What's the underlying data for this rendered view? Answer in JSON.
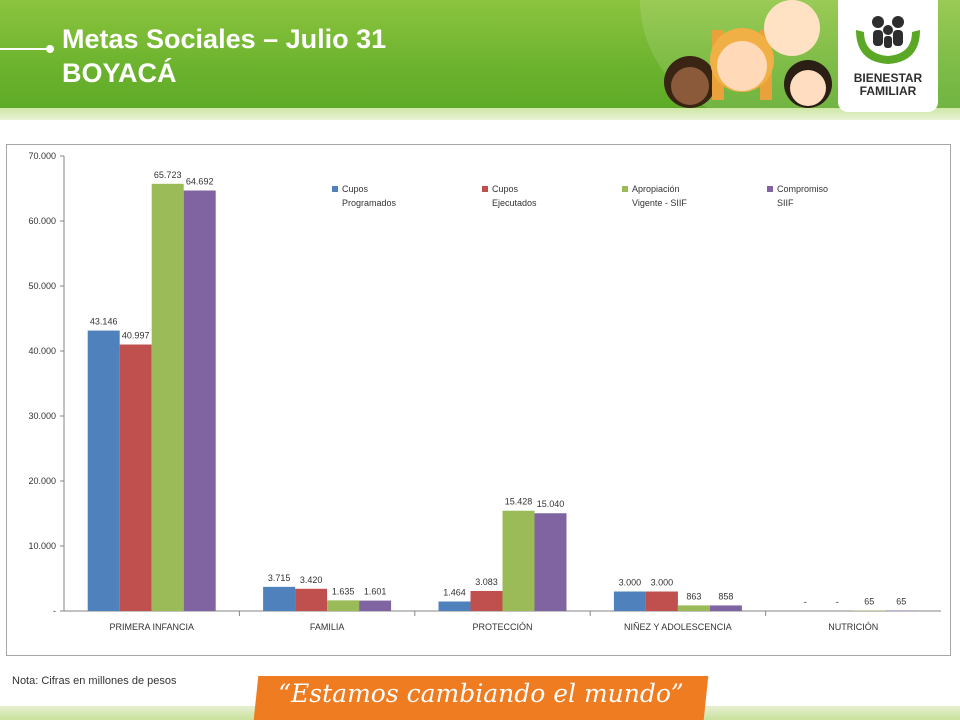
{
  "header": {
    "title_line1": "Metas Sociales – Julio 31",
    "title_line2": "BOYACÁ",
    "logo_line1": "BIENESTAR",
    "logo_line2": "FAMILIAR",
    "colors": {
      "green": "#6cb32e",
      "logo_green": "#5aa826"
    }
  },
  "footer": {
    "note": "Nota: Cifras en millones de pesos",
    "slogan": "“Estamos cambiando el mundo”",
    "slogan_color": "#f07c22"
  },
  "chart_data": {
    "type": "bar",
    "categories": [
      "PRIMERA INFANCIA",
      "FAMILIA",
      "PROTECCIÓN",
      "NIÑEZ Y ADOLESCENCIA",
      "NUTRICIÓN"
    ],
    "series": [
      {
        "name": "Cupos Programados",
        "legend_lines": [
          "Cupos",
          "Programados"
        ],
        "color": "#4f81bd",
        "values": [
          43146,
          3715,
          1464,
          3000,
          0
        ],
        "labels": [
          "43.146",
          "3.715",
          "1.464",
          "3.000",
          "-"
        ]
      },
      {
        "name": "Cupos Ejecutados",
        "legend_lines": [
          "Cupos",
          "Ejecutados"
        ],
        "color": "#c0504d",
        "values": [
          40997,
          3420,
          3083,
          3000,
          0
        ],
        "labels": [
          "40.997",
          "3.420",
          "3.083",
          "3.000",
          "-"
        ]
      },
      {
        "name": "Apropiación Vigente - SIIF",
        "legend_lines": [
          "Apropiación",
          "Vigente - SIIF"
        ],
        "color": "#9bbb59",
        "values": [
          65723,
          1635,
          15428,
          863,
          65
        ],
        "labels": [
          "65.723",
          "1.635",
          "15.428",
          "863",
          "65"
        ]
      },
      {
        "name": "Compromiso SIIF",
        "legend_lines": [
          "Compromiso",
          "SIIF"
        ],
        "color": "#8064a2",
        "values": [
          64692,
          1601,
          15040,
          858,
          65
        ],
        "labels": [
          "64.692",
          "1.601",
          "15.040",
          "858",
          "65"
        ]
      }
    ],
    "yticks": [
      0,
      10000,
      20000,
      30000,
      40000,
      50000,
      60000,
      70000
    ],
    "ytick_labels": [
      "-",
      "10.000",
      "20.000",
      "30.000",
      "40.000",
      "50.000",
      "60.000",
      "70.000"
    ],
    "ylim": [
      0,
      70000
    ],
    "grid": false,
    "legend_position": "top"
  }
}
